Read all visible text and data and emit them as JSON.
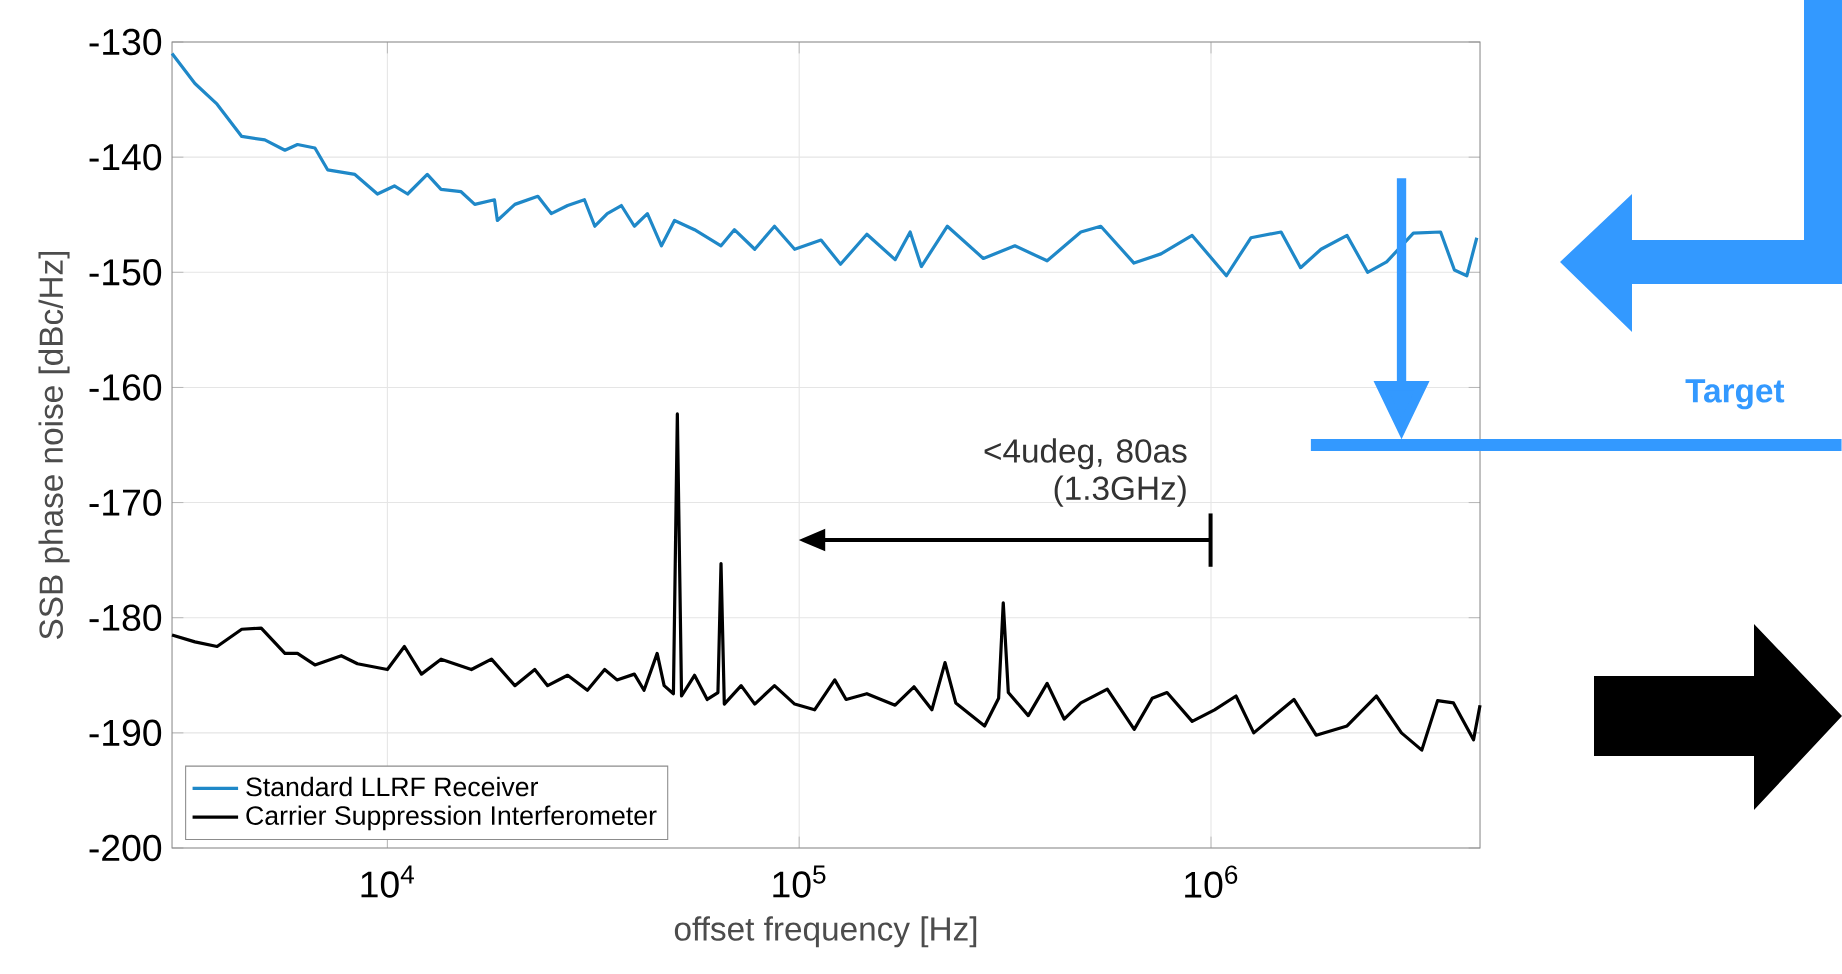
{
  "chart_data": {
    "type": "line",
    "xlabel": "offset frequency [Hz]",
    "ylabel": "SSB phase noise [dBc/Hz]",
    "log": "x",
    "grid": true,
    "legend": "bottom left",
    "xlim": [
      3000,
      4500000
    ],
    "ylim": [
      -200,
      -130
    ],
    "xticks": [
      {
        "value": 10000,
        "label": "10$^{4}$"
      },
      {
        "value": 100000,
        "label": "10$^{5}$"
      },
      {
        "value": 1000000,
        "label": "10$^{6}$"
      }
    ],
    "yticks": [
      -200,
      -190,
      -180,
      -170,
      -160,
      -150,
      -140,
      -130
    ],
    "annotations": [
      "<4udeg, 80as (1.3GHz)"
    ],
    "ref_lines": [
      {
        "axis": "y",
        "value": -165,
        "label": "Target",
        "color": "#3399ff"
      }
    ],
    "series": [
      {
        "name": "Standard LLRF Receiver",
        "color": "#1f88c8",
        "x": [
          3000,
          3410,
          3860,
          4430,
          5040,
          5640,
          6050,
          6670,
          7160,
          8340,
          9460,
          10400,
          11200,
          12500,
          13500,
          15100,
          16300,
          18200,
          18500,
          20400,
          23200,
          25000,
          27400,
          30100,
          31900,
          34200,
          37000,
          39800,
          42800,
          46300,
          49800,
          55700,
          64600,
          69600,
          78000,
          87100,
          97500,
          113000,
          126000,
          146000,
          171000,
          186000,
          198000,
          229000,
          280000,
          334000,
          400000,
          483000,
          540000,
          650000,
          756000,
          900000,
          1090000,
          1250000,
          1480000,
          1650000,
          1850000,
          2140000,
          2400000,
          2670000,
          3100000,
          3610000,
          3900000,
          4180000,
          4420000
        ],
        "values": [
          -131.0,
          -133.6,
          -135.4,
          -138.2,
          -138.5,
          -139.4,
          -138.9,
          -139.2,
          -141.1,
          -141.5,
          -143.2,
          -142.5,
          -143.2,
          -141.5,
          -142.8,
          -143.0,
          -144.1,
          -143.7,
          -145.5,
          -144.1,
          -143.4,
          -144.9,
          -144.2,
          -143.7,
          -146.0,
          -144.9,
          -144.2,
          -146.0,
          -144.9,
          -147.7,
          -145.5,
          -146.3,
          -147.7,
          -146.3,
          -148.0,
          -146.0,
          -148.0,
          -147.2,
          -149.3,
          -146.7,
          -148.9,
          -146.5,
          -149.5,
          -146.0,
          -148.8,
          -147.7,
          -149.0,
          -146.5,
          -146.0,
          -149.2,
          -148.4,
          -146.8,
          -150.3,
          -147.0,
          -146.5,
          -149.6,
          -148.0,
          -146.8,
          -150.0,
          -149.1,
          -146.6,
          -146.5,
          -149.8,
          -150.3,
          -147.0
        ]
      },
      {
        "name": "Carrier Suppression Interferometer",
        "color": "#000000",
        "x": [
          3000,
          3410,
          3860,
          4430,
          4940,
          5640,
          6050,
          6670,
          7730,
          8460,
          10000,
          11000,
          12100,
          13500,
          16000,
          17900,
          20400,
          22800,
          24500,
          27400,
          30600,
          33700,
          36100,
          39800,
          42000,
          45200,
          47000,
          49500,
          50600,
          51800,
          55700,
          59800,
          63500,
          64600,
          65800,
          72300,
          78000,
          87100,
          97500,
          109000,
          122000,
          130000,
          146000,
          158000,
          171000,
          190000,
          210000,
          226000,
          240000,
          282000,
          305000,
          313000,
          322000,
          360000,
          400000,
          440000,
          483000,
          560000,
          651000,
          720000,
          782000,
          900000,
          1020000,
          1150000,
          1270000,
          1590000,
          1800000,
          2140000,
          2520000,
          2900000,
          3250000,
          3550000,
          3880000,
          4340000,
          4500000
        ],
        "values": [
          -181.5,
          -182.1,
          -182.5,
          -181.0,
          -180.9,
          -183.1,
          -183.1,
          -184.1,
          -183.3,
          -184.0,
          -184.5,
          -182.5,
          -184.9,
          -183.6,
          -184.5,
          -183.6,
          -185.9,
          -184.5,
          -185.9,
          -185.0,
          -186.3,
          -184.5,
          -185.4,
          -184.9,
          -186.3,
          -183.1,
          -185.9,
          -186.6,
          -162.3,
          -186.8,
          -185.0,
          -187.1,
          -186.5,
          -175.3,
          -187.5,
          -185.9,
          -187.5,
          -185.9,
          -187.5,
          -188.0,
          -185.4,
          -187.1,
          -186.6,
          -187.1,
          -187.6,
          -186.0,
          -188.0,
          -183.9,
          -187.4,
          -189.4,
          -187.0,
          -178.7,
          -186.5,
          -188.5,
          -185.7,
          -188.8,
          -187.4,
          -186.2,
          -189.7,
          -187.0,
          -186.5,
          -189.0,
          -188.0,
          -186.8,
          -190.0,
          -187.1,
          -190.2,
          -189.4,
          -186.8,
          -190.0,
          -191.5,
          -187.2,
          -187.4,
          -190.6,
          -187.6
        ]
      }
    ]
  }
}
